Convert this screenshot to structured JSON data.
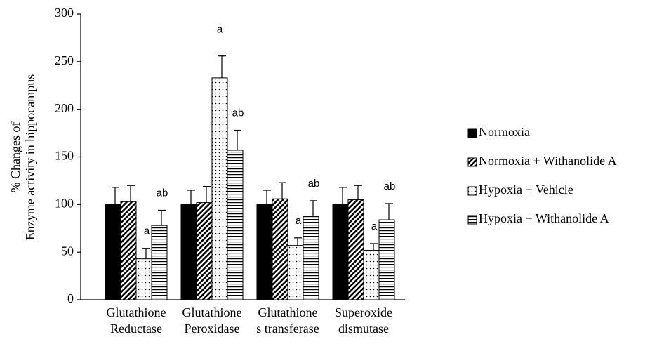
{
  "chart_data": {
    "type": "bar",
    "y_label": [
      "% Changes of",
      "Enzyme activity in hippocampus"
    ],
    "categories": [
      [
        "Glutathione",
        "Reductase"
      ],
      [
        "Glutathione",
        "Peroxidase"
      ],
      [
        "Glutathione",
        "s transferase"
      ],
      [
        "Superoxide",
        "dismutase"
      ]
    ],
    "series": [
      {
        "name": "Normoxia",
        "color": "#000000",
        "pattern": "solid",
        "values": [
          100,
          100,
          100,
          100
        ],
        "errors": [
          18,
          15,
          15,
          18
        ]
      },
      {
        "name": "Normoxia + Withanolide A",
        "color": "#000000",
        "pattern": "diagonal",
        "values": [
          103,
          102,
          106,
          105
        ],
        "errors": [
          17,
          17,
          17,
          15
        ]
      },
      {
        "name": "Hypoxia + Vehicle",
        "color": "#000000",
        "pattern": "dots",
        "values": [
          43,
          233,
          57,
          52
        ],
        "errors": [
          11,
          23,
          8,
          7
        ],
        "annotations": [
          "a",
          "a",
          "a",
          "a"
        ]
      },
      {
        "name": "Hypoxia + Withanolide A",
        "color": "#000000",
        "pattern": "horizontal",
        "values": [
          78,
          157,
          88,
          84
        ],
        "errors": [
          16,
          21,
          16,
          17
        ],
        "annotations": [
          "ab",
          "ab",
          "ab",
          "ab"
        ]
      }
    ],
    "ylim": [
      0,
      300
    ],
    "yticks": [
      0,
      50,
      100,
      150,
      200,
      250,
      300
    ],
    "legend": "right"
  }
}
